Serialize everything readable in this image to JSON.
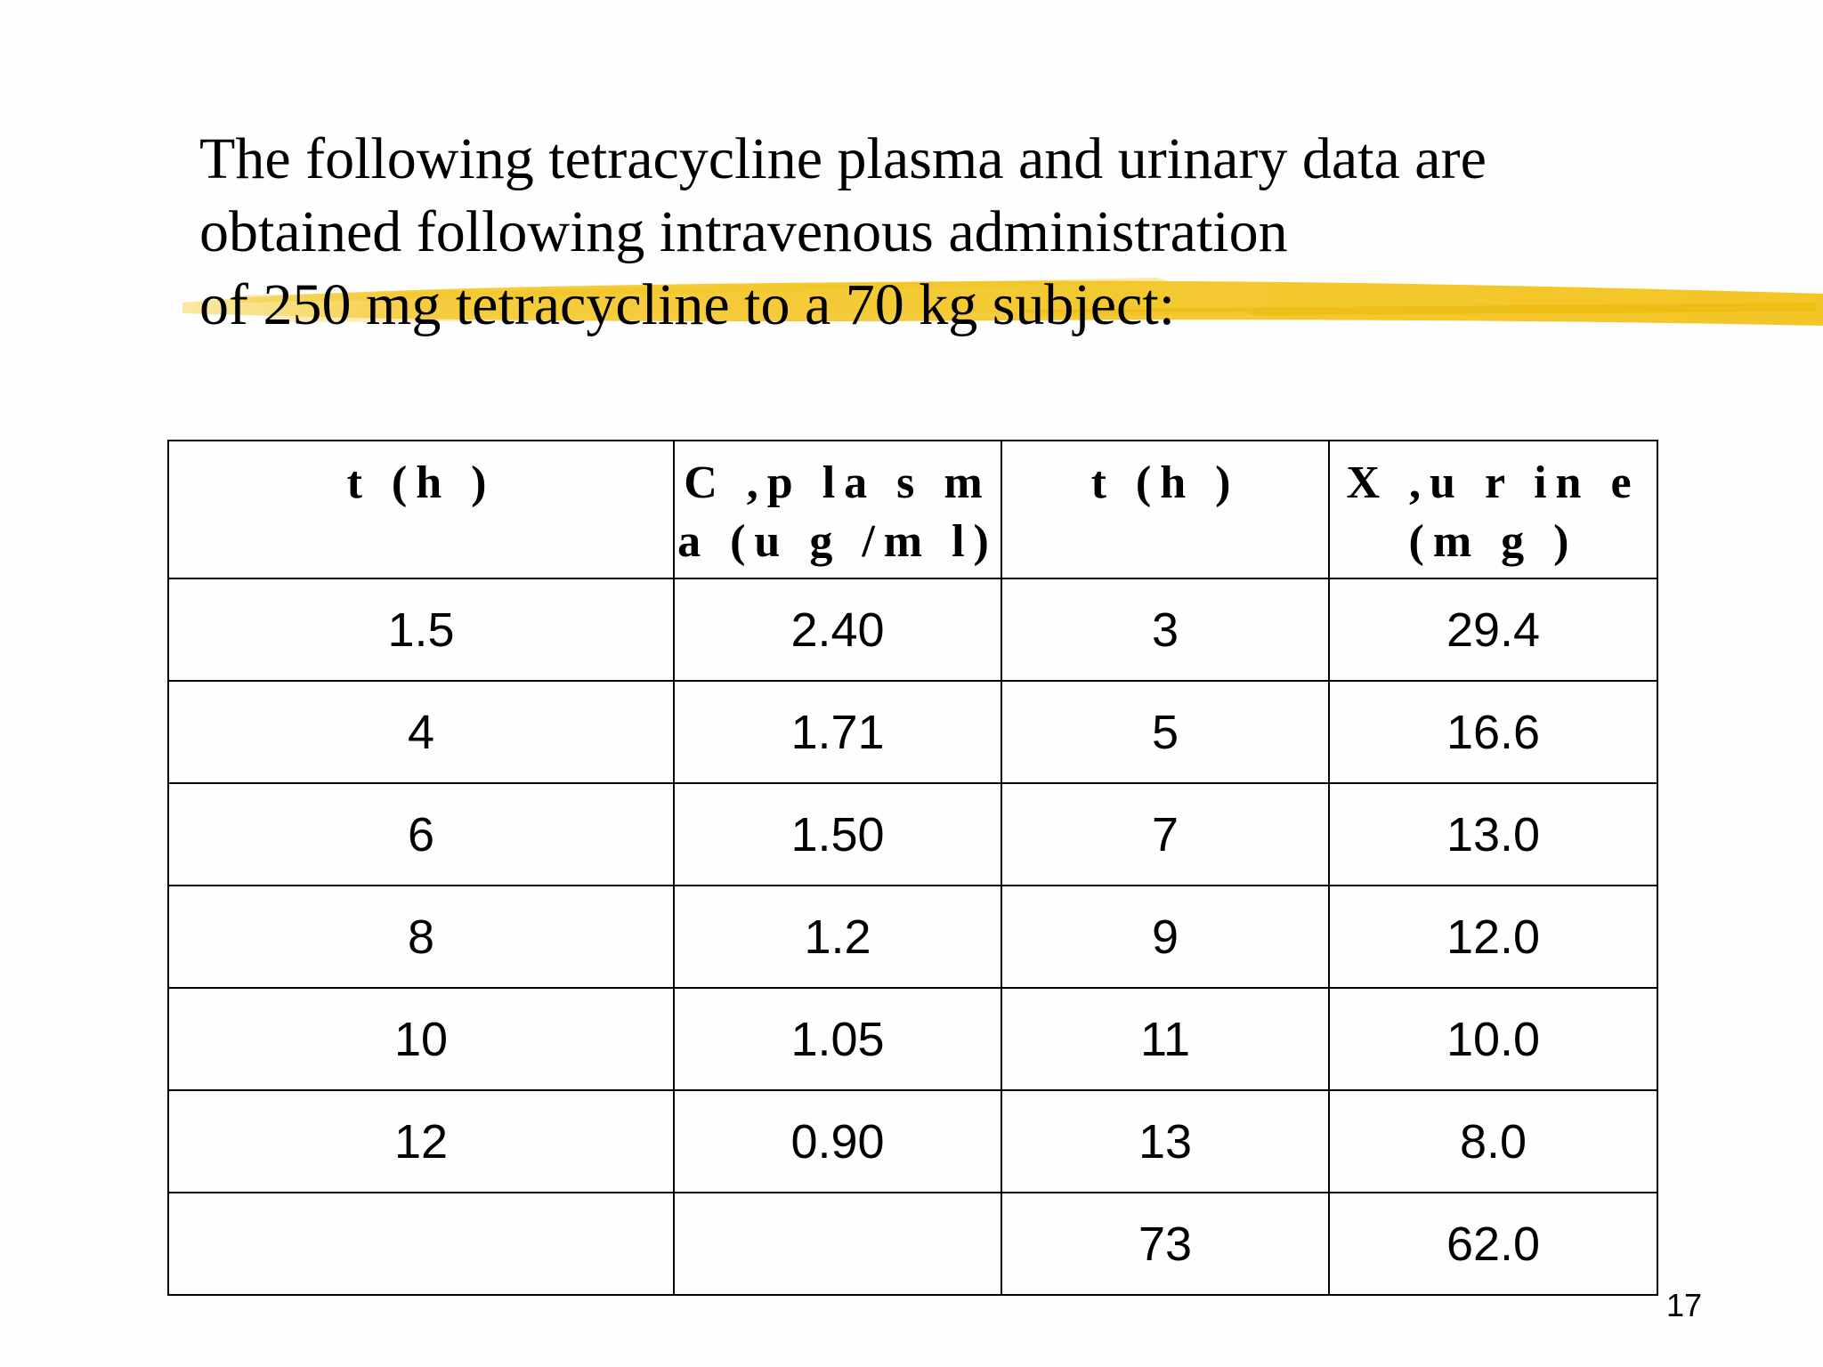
{
  "slide": {
    "title_lines": [
      "The following tetracycline plasma and urinary data are",
      "obtained following intravenous administration",
      "of 250 mg tetracycline to a 70 kg subject:"
    ],
    "highlight_color": "#F2C31B",
    "page_number": "17"
  },
  "table": {
    "headers": [
      "t (h )",
      "C ,p la s m a (u g /m l)",
      "t (h )",
      "X ,u r in e (m g )"
    ],
    "rows": [
      [
        "1.5",
        "2.40",
        "3",
        "29.4"
      ],
      [
        "4",
        "1.71",
        "5",
        "16.6"
      ],
      [
        "6",
        "1.50",
        "7",
        "13.0"
      ],
      [
        "8",
        "1.2",
        "9",
        "12.0"
      ],
      [
        "10",
        "1.05",
        "11",
        "10.0"
      ],
      [
        "12",
        "0.90",
        "13",
        "8.0"
      ],
      [
        "",
        "",
        "73",
        "62.0"
      ]
    ]
  }
}
